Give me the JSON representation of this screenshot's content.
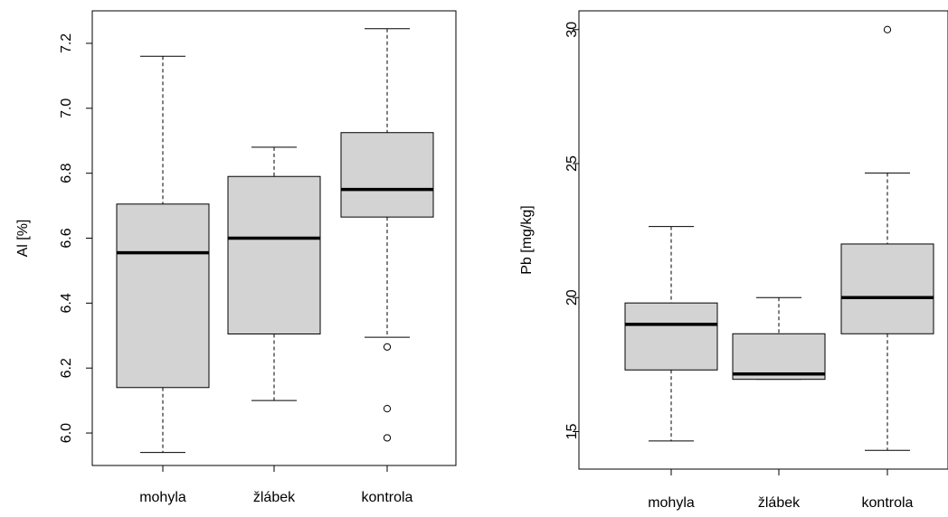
{
  "chart_data": [
    {
      "type": "boxplot",
      "ylabel": "Al [%]",
      "categories": [
        "mohyla",
        "žlábek",
        "kontrola"
      ],
      "yticks": [
        "6.0",
        "6.2",
        "6.4",
        "6.6",
        "6.8",
        "7.0",
        "7.2"
      ],
      "ylim": [
        5.9,
        7.3
      ],
      "boxes": [
        {
          "category": "mohyla",
          "whisker_low": 5.94,
          "q1": 6.14,
          "median": 6.555,
          "q3": 6.705,
          "whisker_high": 7.16,
          "outliers": []
        },
        {
          "category": "žlábek",
          "whisker_low": 6.1,
          "q1": 6.305,
          "median": 6.6,
          "q3": 6.79,
          "whisker_high": 6.88,
          "outliers": []
        },
        {
          "category": "kontrola",
          "whisker_low": 6.295,
          "q1": 6.665,
          "median": 6.75,
          "q3": 6.925,
          "whisker_high": 7.245,
          "outliers": [
            6.265,
            6.075,
            5.985
          ]
        }
      ],
      "box_color": "#d3d3d3",
      "grid": false
    },
    {
      "type": "boxplot",
      "ylabel": "Pb [mg/kg]",
      "categories": [
        "mohyla",
        "žlábek",
        "kontrola"
      ],
      "yticks": [
        "15",
        "20",
        "25",
        "30"
      ],
      "ylim": [
        13.6,
        30.7
      ],
      "boxes": [
        {
          "category": "mohyla",
          "whisker_low": 14.65,
          "q1": 17.3,
          "median": 19.0,
          "q3": 19.8,
          "whisker_high": 22.65,
          "outliers": []
        },
        {
          "category": "žlábek",
          "whisker_low": 16.95,
          "q1": 16.95,
          "median": 17.15,
          "q3": 18.65,
          "whisker_high": 20.0,
          "outliers": []
        },
        {
          "category": "kontrola",
          "whisker_low": 14.3,
          "q1": 18.65,
          "median": 20.0,
          "q3": 22.0,
          "whisker_high": 24.65,
          "outliers": [
            30.0
          ]
        }
      ],
      "box_color": "#d3d3d3",
      "grid": false
    }
  ]
}
